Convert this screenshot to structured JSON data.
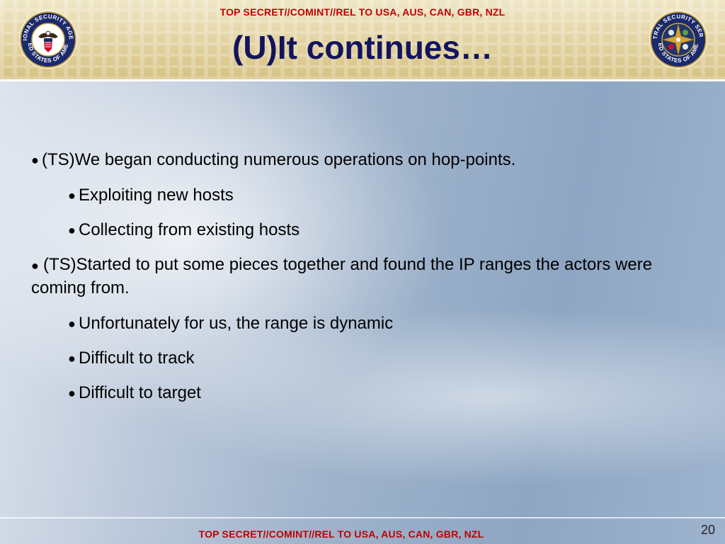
{
  "classification": "TOP SECRET//COMINT//REL TO USA, AUS, CAN, GBR, NZL",
  "title": "(U)It continues…",
  "bullets": [
    {
      "level": 1,
      "text": "(TS)We began conducting numerous operations on hop-points."
    },
    {
      "level": 2,
      "text": "Exploiting new hosts"
    },
    {
      "level": 2,
      "text": "Collecting from existing hosts"
    },
    {
      "level": 1,
      "text": "(TS)Started to put some pieces together and found the IP ranges the actors were coming from."
    },
    {
      "level": 2,
      "text": "Unfortunately for us, the range is dynamic"
    },
    {
      "level": 2,
      "text": "Difficult to track"
    },
    {
      "level": 2,
      "text": "Difficult to target"
    }
  ],
  "left_seal": {
    "icon": "nsa-seal-icon",
    "text_top": "NATIONAL SECURITY AGENCY",
    "text_bottom": "UNITED STATES OF AMERICA"
  },
  "right_seal": {
    "icon": "css-seal-icon",
    "text_top": "CENTRAL SECURITY SERVICE",
    "text_bottom": "UNITED STATES OF AMERICA"
  },
  "page_number": "20",
  "colors": {
    "classification": "#c00000",
    "title": "#12145e"
  }
}
